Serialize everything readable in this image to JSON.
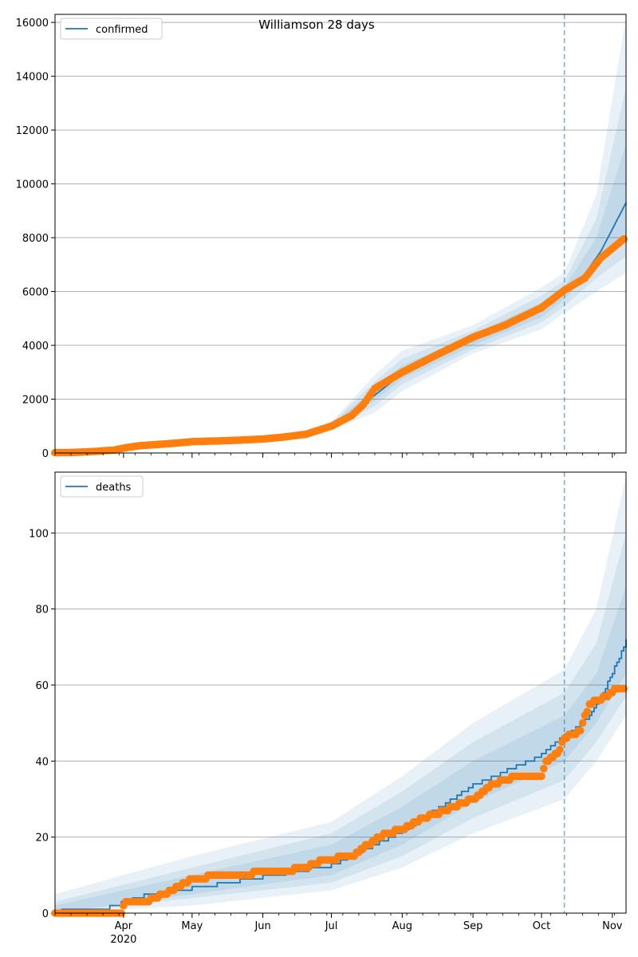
{
  "title": "Williamson 28 days",
  "colors": {
    "model": "#1f77b4",
    "observed": "#ff7f0e",
    "band": "#1f77b4",
    "grid": "#b0b0b0",
    "forecast_line": "#1f77b4"
  },
  "x_axis": {
    "start": "2020-03-02",
    "end": "2020-11-07",
    "forecast_date": "2020-10-11",
    "tick_labels": [
      {
        "date": "2020-04-01",
        "label": "Apr",
        "sublabel": "2020"
      },
      {
        "date": "2020-05-01",
        "label": "May"
      },
      {
        "date": "2020-06-01",
        "label": "Jun"
      },
      {
        "date": "2020-07-01",
        "label": "Jul"
      },
      {
        "date": "2020-08-01",
        "label": "Aug"
      },
      {
        "date": "2020-09-01",
        "label": "Sep"
      },
      {
        "date": "2020-10-01",
        "label": "Oct"
      },
      {
        "date": "2020-11-01",
        "label": "Nov"
      }
    ]
  },
  "chart_data": [
    {
      "type": "line",
      "legend": [
        "confirmed"
      ],
      "legend_position": "top-left",
      "grid": "horizontal",
      "ylim": [
        0,
        16300
      ],
      "yticks": [
        "0",
        "2000",
        "4000",
        "6000",
        "8000",
        "10000",
        "12000",
        "14000",
        "16000"
      ],
      "ytick_values": [
        0,
        2000,
        4000,
        6000,
        8000,
        10000,
        12000,
        14000,
        16000
      ],
      "model": {
        "name": "confirmed",
        "points": [
          [
            "2020-03-02",
            10
          ],
          [
            "2020-03-15",
            30
          ],
          [
            "2020-03-25",
            90
          ],
          [
            "2020-04-01",
            200
          ],
          [
            "2020-04-10",
            280
          ],
          [
            "2020-05-01",
            420
          ],
          [
            "2020-06-01",
            560
          ],
          [
            "2020-06-15",
            700
          ],
          [
            "2020-07-01",
            1000
          ],
          [
            "2020-07-10",
            1450
          ],
          [
            "2020-07-20",
            2150
          ],
          [
            "2020-08-01",
            2950
          ],
          [
            "2020-08-15",
            3550
          ],
          [
            "2020-09-01",
            4200
          ],
          [
            "2020-09-15",
            4650
          ],
          [
            "2020-10-01",
            5300
          ],
          [
            "2020-10-11",
            5950
          ],
          [
            "2020-10-20",
            6650
          ],
          [
            "2020-10-27",
            7500
          ],
          [
            "2020-11-07",
            9300
          ]
        ],
        "bands": [
          {
            "upper": [
              [
                "2020-07-01",
                1150
              ],
              [
                "2020-07-20",
                2900
              ],
              [
                "2020-08-01",
                3800
              ],
              [
                "2020-09-01",
                4750
              ],
              [
                "2020-10-01",
                6150
              ],
              [
                "2020-10-11",
                6700
              ],
              [
                "2020-10-25",
                9600
              ],
              [
                "2020-11-07",
                16200
              ]
            ],
            "lower": [
              [
                "2020-07-01",
                850
              ],
              [
                "2020-07-20",
                1500
              ],
              [
                "2020-08-01",
                2300
              ],
              [
                "2020-09-01",
                3700
              ],
              [
                "2020-10-01",
                4600
              ],
              [
                "2020-10-11",
                5200
              ],
              [
                "2020-10-25",
                6000
              ],
              [
                "2020-11-07",
                6700
              ]
            ]
          },
          {
            "upper": [
              [
                "2020-07-01",
                1100
              ],
              [
                "2020-07-20",
                2650
              ],
              [
                "2020-08-01",
                3500
              ],
              [
                "2020-09-01",
                4550
              ],
              [
                "2020-10-01",
                5850
              ],
              [
                "2020-10-11",
                6400
              ],
              [
                "2020-10-25",
                8700
              ],
              [
                "2020-11-07",
                13600
              ]
            ],
            "lower": [
              [
                "2020-07-01",
                900
              ],
              [
                "2020-07-20",
                1750
              ],
              [
                "2020-08-01",
                2550
              ],
              [
                "2020-09-01",
                3850
              ],
              [
                "2020-10-01",
                4850
              ],
              [
                "2020-10-11",
                5450
              ],
              [
                "2020-10-25",
                6500
              ],
              [
                "2020-11-07",
                7300
              ]
            ]
          },
          {
            "upper": [
              [
                "2020-07-01",
                1050
              ],
              [
                "2020-07-20",
                2400
              ],
              [
                "2020-08-01",
                3250
              ],
              [
                "2020-09-01",
                4400
              ],
              [
                "2020-10-01",
                5600
              ],
              [
                "2020-10-11",
                6150
              ],
              [
                "2020-10-25",
                8000
              ],
              [
                "2020-11-07",
                11500
              ]
            ],
            "lower": [
              [
                "2020-07-01",
                950
              ],
              [
                "2020-07-20",
                1950
              ],
              [
                "2020-08-01",
                2750
              ],
              [
                "2020-09-01",
                4000
              ],
              [
                "2020-10-01",
                5050
              ],
              [
                "2020-10-11",
                5700
              ],
              [
                "2020-10-25",
                7000
              ],
              [
                "2020-11-07",
                8000
              ]
            ]
          }
        ]
      },
      "observed": [
        [
          "2020-03-02",
          10
        ],
        [
          "2020-03-10",
          20
        ],
        [
          "2020-03-20",
          60
        ],
        [
          "2020-03-28",
          110
        ],
        [
          "2020-04-02",
          200
        ],
        [
          "2020-04-08",
          270
        ],
        [
          "2020-04-20",
          340
        ],
        [
          "2020-05-01",
          420
        ],
        [
          "2020-05-20",
          470
        ],
        [
          "2020-06-01",
          520
        ],
        [
          "2020-06-10",
          590
        ],
        [
          "2020-06-20",
          700
        ],
        [
          "2020-07-01",
          1000
        ],
        [
          "2020-07-10",
          1400
        ],
        [
          "2020-07-15",
          1800
        ],
        [
          "2020-07-20",
          2400
        ],
        [
          "2020-08-01",
          3000
        ],
        [
          "2020-08-15",
          3600
        ],
        [
          "2020-09-01",
          4300
        ],
        [
          "2020-09-15",
          4750
        ],
        [
          "2020-10-01",
          5400
        ],
        [
          "2020-10-11",
          6050
        ],
        [
          "2020-10-20",
          6500
        ],
        [
          "2020-10-27",
          7250
        ],
        [
          "2020-11-06",
          7950
        ]
      ]
    },
    {
      "type": "line",
      "legend": [
        "deaths"
      ],
      "legend_position": "top-left",
      "grid": "horizontal",
      "ylim": [
        0,
        116
      ],
      "yticks": [
        "0",
        "20",
        "40",
        "60",
        "80",
        "100"
      ],
      "ytick_values": [
        0,
        20,
        40,
        60,
        80,
        100
      ],
      "model": {
        "name": "deaths",
        "points": [
          [
            "2020-03-02",
            0
          ],
          [
            "2020-03-05",
            1
          ],
          [
            "2020-03-25",
            1
          ],
          [
            "2020-03-26",
            2
          ],
          [
            "2020-04-10",
            5
          ],
          [
            "2020-05-01",
            7
          ],
          [
            "2020-06-01",
            10
          ],
          [
            "2020-07-01",
            13
          ],
          [
            "2020-08-01",
            22
          ],
          [
            "2020-09-01",
            34
          ],
          [
            "2020-10-01",
            42
          ],
          [
            "2020-10-11",
            47
          ],
          [
            "2020-10-20",
            51
          ],
          [
            "2020-10-27",
            57
          ],
          [
            "2020-11-07",
            72
          ]
        ],
        "bands": [
          {
            "upper": [
              [
                "2020-03-02",
                5
              ],
              [
                "2020-05-01",
                15
              ],
              [
                "2020-07-01",
                24
              ],
              [
                "2020-08-01",
                36
              ],
              [
                "2020-09-01",
                50
              ],
              [
                "2020-10-11",
                64
              ],
              [
                "2020-10-25",
                80
              ],
              [
                "2020-11-07",
                115
              ]
            ],
            "lower": [
              [
                "2020-03-02",
                0
              ],
              [
                "2020-05-01",
                2
              ],
              [
                "2020-07-01",
                6
              ],
              [
                "2020-08-01",
                12
              ],
              [
                "2020-09-01",
                21
              ],
              [
                "2020-10-11",
                30
              ],
              [
                "2020-10-25",
                40
              ],
              [
                "2020-11-07",
                52
              ]
            ]
          },
          {
            "upper": [
              [
                "2020-03-02",
                3
              ],
              [
                "2020-05-01",
                12
              ],
              [
                "2020-07-01",
                21
              ],
              [
                "2020-08-01",
                32
              ],
              [
                "2020-09-01",
                45
              ],
              [
                "2020-10-11",
                58
              ],
              [
                "2020-10-25",
                71
              ],
              [
                "2020-11-07",
                100
              ]
            ],
            "lower": [
              [
                "2020-03-02",
                0
              ],
              [
                "2020-05-01",
                4
              ],
              [
                "2020-07-01",
                8
              ],
              [
                "2020-08-01",
                15
              ],
              [
                "2020-09-01",
                25
              ],
              [
                "2020-10-11",
                35
              ],
              [
                "2020-10-25",
                45
              ],
              [
                "2020-11-07",
                57
              ]
            ]
          },
          {
            "upper": [
              [
                "2020-03-02",
                2
              ],
              [
                "2020-05-01",
                10
              ],
              [
                "2020-07-01",
                18
              ],
              [
                "2020-08-01",
                28
              ],
              [
                "2020-09-01",
                40
              ],
              [
                "2020-10-11",
                52
              ],
              [
                "2020-10-25",
                63
              ],
              [
                "2020-11-07",
                86
              ]
            ],
            "lower": [
              [
                "2020-03-02",
                0
              ],
              [
                "2020-05-01",
                5
              ],
              [
                "2020-07-01",
                10
              ],
              [
                "2020-08-01",
                18
              ],
              [
                "2020-09-01",
                29
              ],
              [
                "2020-10-11",
                40
              ],
              [
                "2020-10-25",
                50
              ],
              [
                "2020-11-07",
                63
              ]
            ]
          }
        ]
      },
      "observed": [
        [
          "2020-03-02",
          0
        ],
        [
          "2020-03-31",
          0
        ],
        [
          "2020-04-02",
          3
        ],
        [
          "2020-04-10",
          3
        ],
        [
          "2020-04-15",
          4
        ],
        [
          "2020-04-22",
          6
        ],
        [
          "2020-05-01",
          9
        ],
        [
          "2020-05-15",
          10
        ],
        [
          "2020-06-10",
          11
        ],
        [
          "2020-06-20",
          12
        ],
        [
          "2020-06-28",
          14
        ],
        [
          "2020-07-10",
          15
        ],
        [
          "2020-07-17",
          18
        ],
        [
          "2020-07-25",
          21
        ],
        [
          "2020-08-01",
          22
        ],
        [
          "2020-08-10",
          25
        ],
        [
          "2020-08-20",
          27
        ],
        [
          "2020-09-01",
          30
        ],
        [
          "2020-09-10",
          34
        ],
        [
          "2020-09-15",
          35
        ],
        [
          "2020-09-20",
          36
        ],
        [
          "2020-10-01",
          36
        ],
        [
          "2020-10-03",
          40
        ],
        [
          "2020-10-08",
          42
        ],
        [
          "2020-10-11",
          46
        ],
        [
          "2020-10-18",
          48
        ],
        [
          "2020-10-22",
          55
        ],
        [
          "2020-10-25",
          56
        ],
        [
          "2020-10-30",
          57
        ],
        [
          "2020-11-03",
          59
        ],
        [
          "2020-11-06",
          59
        ]
      ]
    }
  ]
}
